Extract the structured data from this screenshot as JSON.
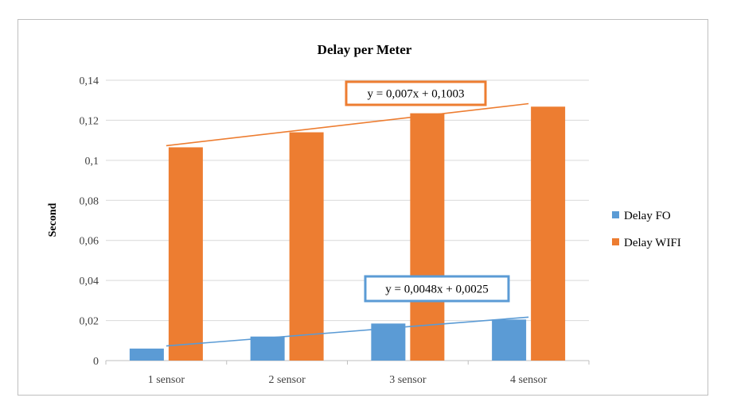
{
  "chart_data": {
    "type": "bar",
    "title": "Delay per Meter",
    "ylabel": "Second",
    "xlabel": "",
    "categories": [
      "1 sensor",
      "2 sensor",
      "3 sensor",
      "4 sensor"
    ],
    "series": [
      {
        "name": "Delay FO",
        "values": [
          0.006,
          0.012,
          0.0185,
          0.0205
        ],
        "color": "#5b9bd5"
      },
      {
        "name": "Delay WIFI",
        "values": [
          0.1065,
          0.114,
          0.1235,
          0.1268
        ],
        "color": "#ed7d31"
      }
    ],
    "ylim": [
      0,
      0.14
    ],
    "yticks": [
      0,
      0.02,
      0.04,
      0.06,
      0.08,
      0.1,
      0.12,
      0.14
    ],
    "ytick_labels": [
      "0",
      "0,02",
      "0,04",
      "0,06",
      "0,08",
      "0,1",
      "0,12",
      "0,14"
    ],
    "grid": true,
    "legend_position": "right",
    "trendlines": [
      {
        "series": "Delay FO",
        "slope": 0.0048,
        "intercept": 0.0025,
        "equation": "y = 0,0048x + 0,0025",
        "color": "#5b9bd5"
      },
      {
        "series": "Delay WIFI",
        "slope": 0.007,
        "intercept": 0.1003,
        "equation": "y = 0,007x + 0,1003",
        "color": "#ed7d31"
      }
    ]
  }
}
